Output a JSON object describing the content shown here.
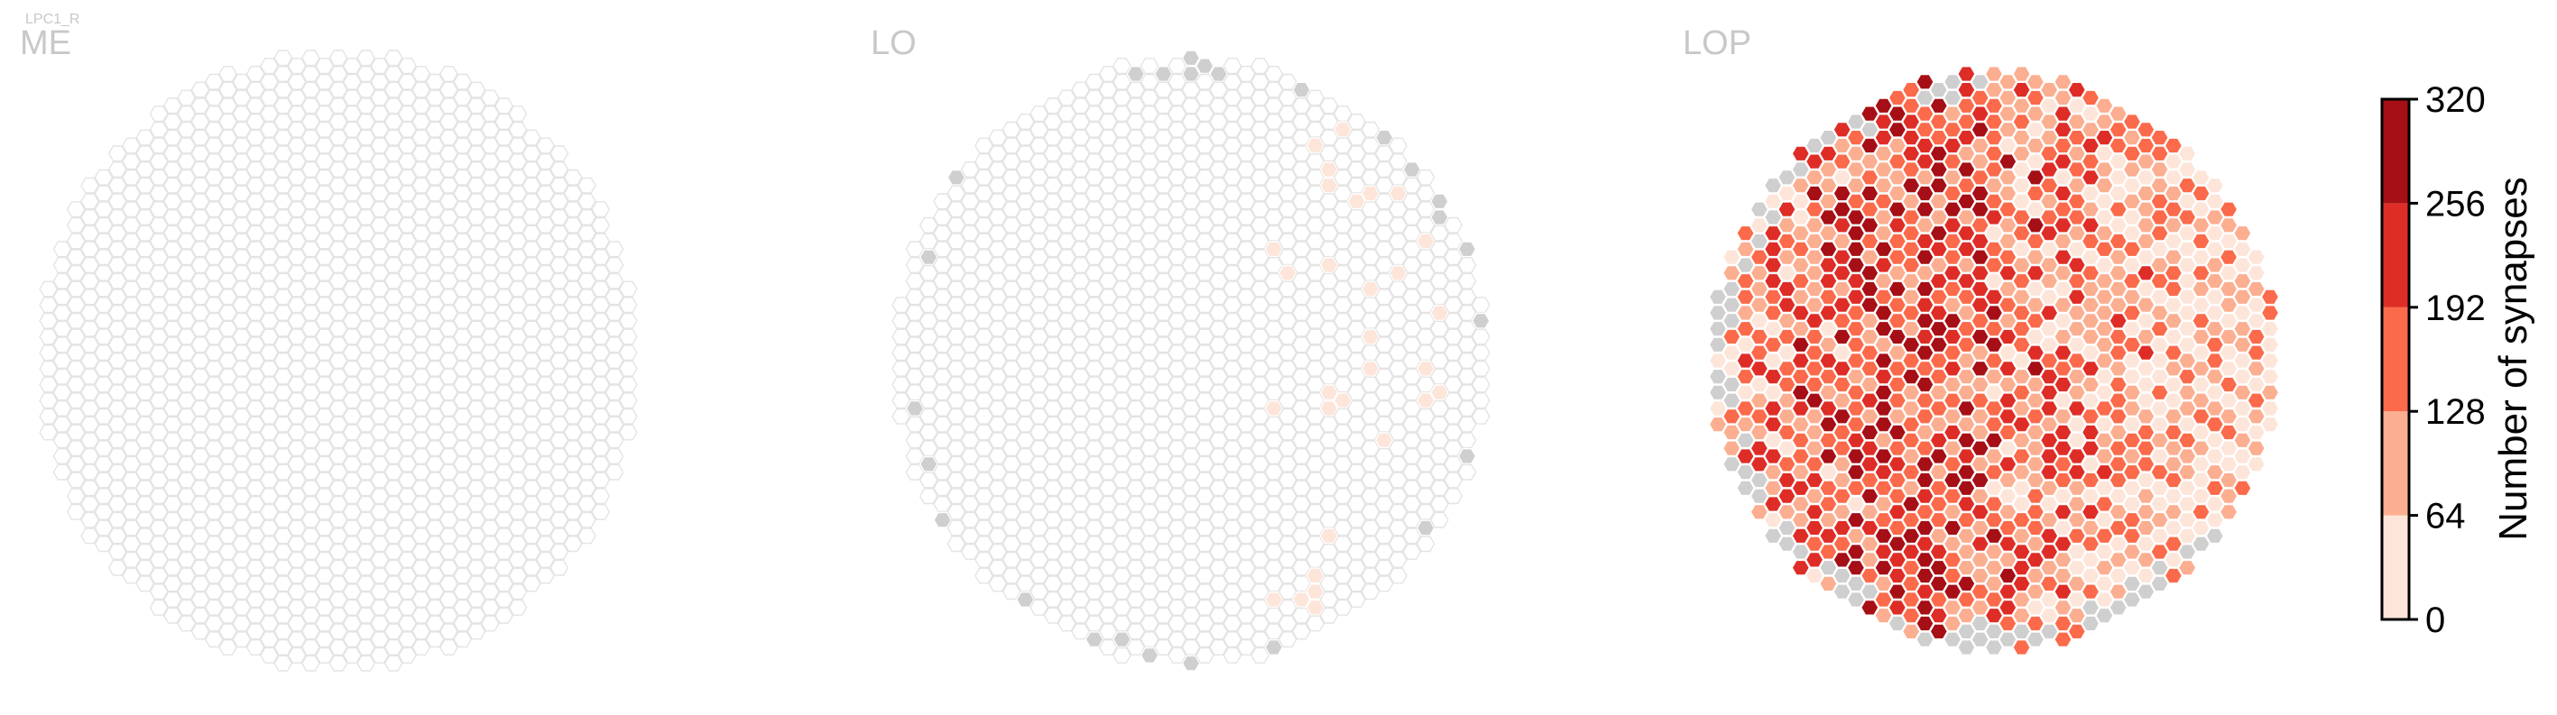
{
  "cell_label": "LPC1_R",
  "panels": [
    {
      "id": "ME",
      "title": "ME"
    },
    {
      "id": "LO",
      "title": "LO"
    },
    {
      "id": "LOP",
      "title": "LOP"
    }
  ],
  "colorbar": {
    "title": "Number of synapses",
    "ticks": [
      "0",
      "64",
      "128",
      "192",
      "256",
      "320"
    ],
    "colors": [
      "#fee5d9",
      "#fcae91",
      "#fb6a4a",
      "#de2d26",
      "#a50f15"
    ],
    "no_synapse_color": "#cfcfcf",
    "empty_stroke": "#e4e4e4"
  },
  "chart_data": {
    "type": "heatmap",
    "title": "",
    "layout": "hexagonal columns",
    "panels": [
      "ME",
      "LO",
      "LOP"
    ],
    "colorbar_label": "Number of synapses",
    "vmin": 0,
    "vmax": 320,
    "bins": [
      [
        0,
        64
      ],
      [
        64,
        128
      ],
      [
        128,
        192
      ],
      [
        192,
        256
      ],
      [
        256,
        320
      ]
    ],
    "summary": {
      "ME": "all columns empty (0 synapses)",
      "LO": "mostly empty; a few columns 1-64 synapses on right side; grey (no synapse) columns along rim",
      "LOP": "most columns 1-320 synapses; strongest (256-320) scattered centre-left; grey rim columns on left, upper-left and lower edge"
    }
  }
}
